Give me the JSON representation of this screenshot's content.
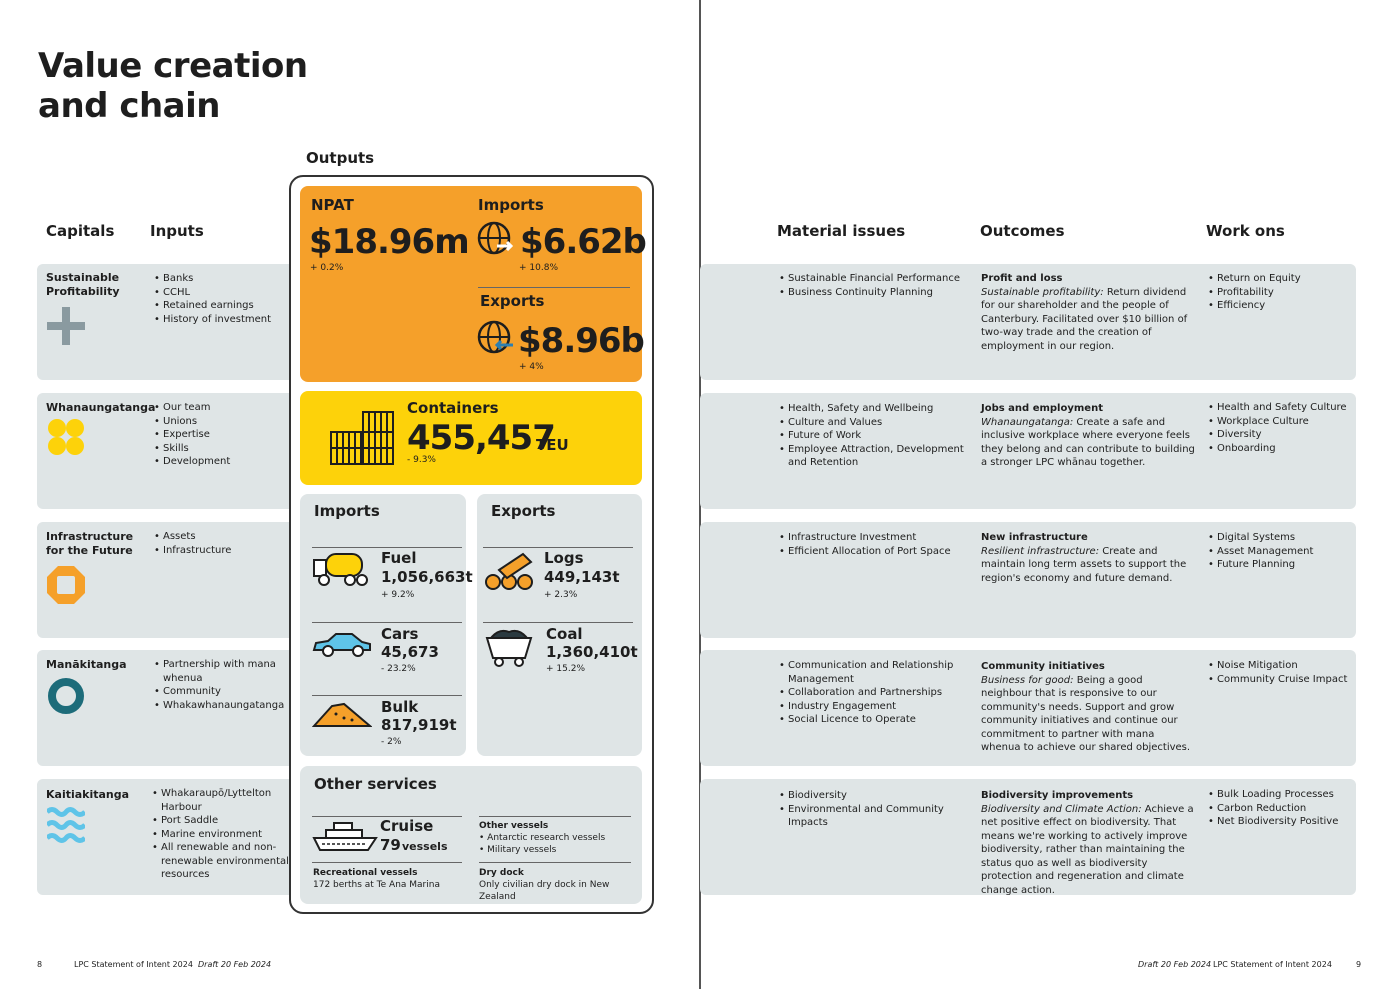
{
  "page": {
    "title_line1": "Value creation",
    "title_line2": "and chain"
  },
  "headers": {
    "outputs": "Outputs",
    "capitals": "Capitals",
    "inputs": "Inputs",
    "material_issues": "Material issues",
    "outcomes": "Outcomes",
    "work_ons": "Work ons"
  },
  "rows": [
    {
      "capital": [
        "Sustainable",
        "Profitability"
      ],
      "icon": "plus-icon",
      "icon_color": "#8a9aa0",
      "inputs": [
        "Banks",
        "CCHL",
        "Retained earnings",
        "History of investment"
      ],
      "material": [
        "Sustainable Financial Performance",
        "Business Continuity Planning"
      ],
      "outcome_title": "Profit and loss",
      "outcome_italic": "Sustainable profitability:",
      "outcome_text": "Return dividend for our shareholder and the people of Canterbury. Facilitated over $10 billion of two-way trade and the creation of employment in our region.",
      "work_ons": [
        "Return on Equity",
        "Profitability",
        "Efficiency"
      ]
    },
    {
      "capital": [
        "Whanaungatanga"
      ],
      "icon": "four-circles-icon",
      "icon_color": "#fdd20a",
      "inputs": [
        "Our team",
        "Unions",
        "Expertise",
        "Skills",
        "Development"
      ],
      "material": [
        "Health, Safety and Wellbeing",
        "Culture and Values",
        "Future of Work",
        "Employee Attraction, Development and Retention"
      ],
      "outcome_title": "Jobs and employment",
      "outcome_italic": "Whanaungatanga:",
      "outcome_text": "Create a safe and inclusive workplace where everyone feels they belong and can contribute to building a stronger LPC whānau together.",
      "work_ons": [
        "Health and Safety Culture",
        "Workplace Culture",
        "Diversity",
        "Onboarding"
      ]
    },
    {
      "capital": [
        "Infrastructure",
        "for the Future"
      ],
      "icon": "octagon-icon",
      "icon_color": "#f5a02a",
      "inputs": [
        "Assets",
        "Infrastructure"
      ],
      "material": [
        "Infrastructure Investment",
        "Efficient Allocation of Port Space"
      ],
      "outcome_title": "New infrastructure",
      "outcome_italic": "Resilient infrastructure:",
      "outcome_text": "Create and maintain long term assets to support the region's economy and future demand.",
      "work_ons": [
        "Digital Systems",
        "Asset Management",
        "Future Planning"
      ]
    },
    {
      "capital": [
        "Manākitanga"
      ],
      "icon": "ring-icon",
      "icon_color": "#1d6c7a",
      "inputs": [
        "Partnership with mana whenua",
        "Community",
        "Whakawhanaungatanga"
      ],
      "material": [
        "Communication and Relationship Management",
        "Collaboration and Partnerships",
        "Industry Engagement",
        "Social Licence to Operate"
      ],
      "outcome_title": "Community initiatives",
      "outcome_italic": "Business for good:",
      "outcome_text": "Being a good neighbour that is responsive to our community's needs. Support and grow community initiatives and continue our commitment to partner with mana whenua to achieve our shared objectives.",
      "work_ons": [
        "Noise Mitigation",
        "Community Cruise Impact"
      ]
    },
    {
      "capital": [
        "Kaitiakitanga"
      ],
      "icon": "waves-icon",
      "icon_color": "#5fc4e8",
      "inputs": [
        "Whakaraupō/Lyttelton Harbour",
        "Port Saddle",
        "Marine environment",
        "All renewable and non-renewable environmental resources"
      ],
      "material": [
        "Biodiversity",
        "Environmental and Community Impacts"
      ],
      "outcome_title": "Biodiversity improvements",
      "outcome_italic": "Biodiversity and Climate Action:",
      "outcome_text": "Achieve a net positive effect on biodiversity. That means we're working to actively improve biodiversity, rather than maintaining the status quo as well as biodiversity protection and regeneration and climate change action.",
      "work_ons": [
        "Bulk Loading Processes",
        "Carbon Reduction",
        "Net Biodiversity Positive"
      ]
    }
  ],
  "outputs": {
    "npat": {
      "label": "NPAT",
      "value": "$18.96m",
      "change": "+ 0.2%"
    },
    "imports": {
      "label": "Imports",
      "value": "$6.62b",
      "change": "+ 10.8%"
    },
    "exports": {
      "label": "Exports",
      "value": "$8.96b",
      "change": "+ 4%"
    },
    "containers": {
      "label": "Containers",
      "value": "455,457",
      "unit": "TEU",
      "change": "- 9.3%"
    },
    "imports_panel": {
      "label": "Imports",
      "items": [
        {
          "name": "Fuel",
          "value": "1,056,663t",
          "change": "+ 9.2%",
          "icon": "fuel-truck-icon"
        },
        {
          "name": "Cars",
          "value": "45,673",
          "change": "- 23.2%",
          "icon": "car-icon"
        },
        {
          "name": "Bulk",
          "value": "817,919t",
          "change": "- 2%",
          "icon": "bulk-pile-icon"
        }
      ]
    },
    "exports_panel": {
      "label": "Exports",
      "items": [
        {
          "name": "Logs",
          "value": "449,143t",
          "change": "+ 2.3%",
          "icon": "logs-icon"
        },
        {
          "name": "Coal",
          "value": "1,360,410t",
          "change": "+ 15.2%",
          "icon": "coal-cart-icon"
        }
      ]
    },
    "other": {
      "label": "Other services",
      "cruise_name": "Cruise",
      "cruise_count": "79",
      "cruise_unit": "vessels",
      "other_vessels_title": "Other vessels",
      "other_vessels": [
        "Antarctic research vessels",
        "Military vessels"
      ],
      "rec_title": "Recreational vessels",
      "rec_text": "172 berths at Te Ana Marina",
      "dry_title": "Dry dock",
      "dry_text": "Only civilian dry dock in New Zealand"
    }
  },
  "footer": {
    "left_page": "8",
    "left_doc": "LPC Statement of Intent 2024",
    "left_draft": "Draft 20 Feb 2024",
    "right_draft": "Draft 20 Feb 2024",
    "right_doc": "LPC Statement of Intent 2024",
    "right_page": "9"
  }
}
